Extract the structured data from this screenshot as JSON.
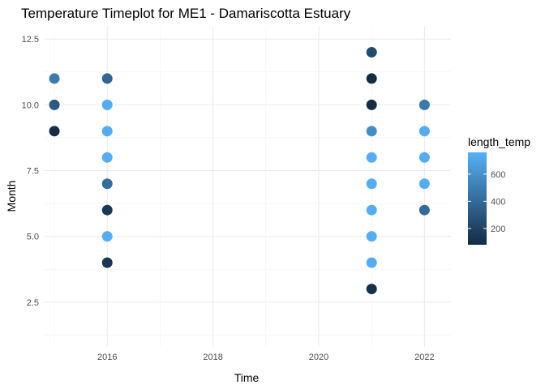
{
  "chart_data": {
    "type": "scatter",
    "title": "Temperature Timeplot for ME1 - Damariscotta Estuary",
    "xlabel": "Time",
    "ylabel": "Month",
    "xlim": [
      2014.8,
      2022.5
    ],
    "ylim": [
      0.8,
      13.0
    ],
    "x_ticks": [
      2016,
      2018,
      2020,
      2022
    ],
    "x_tick_labels": [
      "2016",
      "2018",
      "2020",
      "2022"
    ],
    "y_ticks": [
      2.5,
      5.0,
      7.5,
      10.0,
      12.5
    ],
    "y_tick_labels": [
      "2.5",
      "5.0",
      "7.5",
      "10.0",
      "12.5"
    ],
    "grid": true,
    "legend": {
      "title": "length_temp",
      "placement": "right",
      "min": 80,
      "max": 760,
      "ticks": [
        200,
        400,
        600
      ],
      "tick_labels": [
        "200",
        "400",
        "600"
      ],
      "color_low": "#132B43",
      "color_high": "#56B1F7"
    },
    "points": [
      {
        "x": 2015,
        "y": 11,
        "length_temp": 480
      },
      {
        "x": 2015,
        "y": 10,
        "length_temp": 320
      },
      {
        "x": 2015,
        "y": 9,
        "length_temp": 90
      },
      {
        "x": 2016,
        "y": 11,
        "length_temp": 380
      },
      {
        "x": 2016,
        "y": 10,
        "length_temp": 740
      },
      {
        "x": 2016,
        "y": 9,
        "length_temp": 740
      },
      {
        "x": 2016,
        "y": 8,
        "length_temp": 740
      },
      {
        "x": 2016,
        "y": 7,
        "length_temp": 420
      },
      {
        "x": 2016,
        "y": 6,
        "length_temp": 150
      },
      {
        "x": 2016,
        "y": 5,
        "length_temp": 740
      },
      {
        "x": 2016,
        "y": 4,
        "length_temp": 140
      },
      {
        "x": 2021,
        "y": 12,
        "length_temp": 240
      },
      {
        "x": 2021,
        "y": 11,
        "length_temp": 90
      },
      {
        "x": 2021,
        "y": 10,
        "length_temp": 90
      },
      {
        "x": 2021,
        "y": 9,
        "length_temp": 580
      },
      {
        "x": 2021,
        "y": 8,
        "length_temp": 740
      },
      {
        "x": 2021,
        "y": 7,
        "length_temp": 740
      },
      {
        "x": 2021,
        "y": 6,
        "length_temp": 740
      },
      {
        "x": 2021,
        "y": 5,
        "length_temp": 740
      },
      {
        "x": 2021,
        "y": 4,
        "length_temp": 740
      },
      {
        "x": 2021,
        "y": 3,
        "length_temp": 100
      },
      {
        "x": 2022,
        "y": 10,
        "length_temp": 480
      },
      {
        "x": 2022,
        "y": 9,
        "length_temp": 740
      },
      {
        "x": 2022,
        "y": 8,
        "length_temp": 740
      },
      {
        "x": 2022,
        "y": 7,
        "length_temp": 740
      },
      {
        "x": 2022,
        "y": 6,
        "length_temp": 400
      }
    ]
  }
}
